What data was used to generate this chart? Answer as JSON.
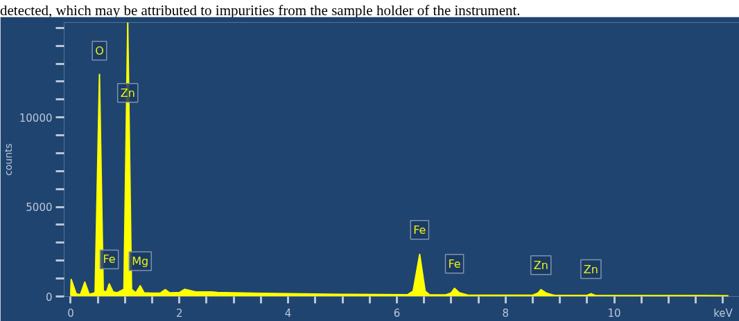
{
  "chart_data": {
    "type": "area",
    "ylabel": "counts",
    "annotations": [
      "detected, which may be attributed to impurities from the sample holder of the instrument.",
      {
        "text": "O",
        "x": 0.53,
        "y": 12350
      },
      {
        "text": "Zn",
        "x": 1.05,
        "y": 10000
      },
      {
        "text": "Fe",
        "x": 0.71,
        "y": 700
      },
      {
        "text": "Mg",
        "x": 1.28,
        "y": 600
      },
      {
        "text": "Fe",
        "x": 6.42,
        "y": 2350
      },
      {
        "text": "Fe",
        "x": 7.06,
        "y": 450
      },
      {
        "text": "Zn",
        "x": 8.65,
        "y": 380
      },
      {
        "text": "Zn",
        "x": 9.57,
        "y": 150
      }
    ],
    "x": [
      0.0,
      0.01,
      0.1,
      0.18,
      0.26,
      0.34,
      0.45,
      0.53,
      0.6,
      0.66,
      0.71,
      0.78,
      0.85,
      0.98,
      1.05,
      1.12,
      1.2,
      1.28,
      1.35,
      1.5,
      1.65,
      1.74,
      1.82,
      2.0,
      2.1,
      2.3,
      2.6,
      2.7,
      3.0,
      3.5,
      4.0,
      5.0,
      6.2,
      6.3,
      6.42,
      6.52,
      6.6,
      6.9,
      7.0,
      7.06,
      7.15,
      7.3,
      8.5,
      8.6,
      8.65,
      8.75,
      8.9,
      9.5,
      9.57,
      9.65,
      11.0,
      12.1
    ],
    "series": [
      {
        "color": "#ffff00",
        "values": [
          50,
          950,
          150,
          100,
          800,
          120,
          200,
          12400,
          300,
          250,
          700,
          250,
          200,
          400,
          15300,
          400,
          200,
          600,
          200,
          180,
          190,
          380,
          200,
          220,
          400,
          250,
          250,
          220,
          200,
          170,
          150,
          120,
          100,
          300,
          2350,
          300,
          100,
          90,
          200,
          450,
          200,
          80,
          70,
          200,
          380,
          180,
          60,
          60,
          150,
          60,
          50,
          40
        ]
      }
    ],
    "xlim": [
      -0.12,
      12.3
    ],
    "ylim": [
      0,
      15300
    ],
    "xticks": [
      0,
      {
        "value": 0.5,
        "label": null
      },
      {
        "value": 1,
        "label": null
      },
      {
        "value": 1.5,
        "label": null
      },
      2,
      {
        "value": 2.5,
        "label": null
      },
      {
        "value": 3,
        "label": null
      },
      {
        "value": 3.5,
        "label": null
      },
      4,
      {
        "value": 4.5,
        "label": null
      },
      {
        "value": 5,
        "label": null
      },
      {
        "value": 5.5,
        "label": null
      },
      6,
      {
        "value": 6.5,
        "label": null
      },
      {
        "value": 7,
        "label": null
      },
      {
        "value": 7.5,
        "label": null
      },
      8,
      {
        "value": 8.5,
        "label": null
      },
      {
        "value": 9,
        "label": null
      },
      {
        "value": 9.5,
        "label": null
      },
      10,
      {
        "value": 10.5,
        "label": null
      },
      {
        "value": 11,
        "label": null
      },
      {
        "value": 11.5,
        "label": null
      },
      {
        "value": 12,
        "label": "keV"
      }
    ],
    "yticks": [
      0,
      {
        "value": 1000,
        "label": null
      },
      {
        "value": 2000,
        "label": null
      },
      {
        "value": 3000,
        "label": null
      },
      {
        "value": 4000,
        "label": null
      },
      5000,
      {
        "value": 6000,
        "label": null
      },
      {
        "value": 7000,
        "label": null
      },
      {
        "value": 8000,
        "label": null
      },
      {
        "value": 9000,
        "label": null
      },
      10000,
      {
        "value": 11000,
        "label": null
      },
      {
        "value": 12000,
        "label": null
      },
      {
        "value": 13000,
        "label": null
      },
      {
        "value": 14000,
        "label": null
      },
      {
        "value": 15000,
        "label": null
      }
    ],
    "grid": false
  }
}
